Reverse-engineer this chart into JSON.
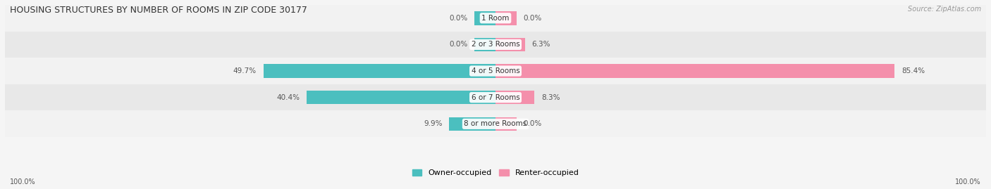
{
  "title": "HOUSING STRUCTURES BY NUMBER OF ROOMS IN ZIP CODE 30177",
  "source": "Source: ZipAtlas.com",
  "categories": [
    "1 Room",
    "2 or 3 Rooms",
    "4 or 5 Rooms",
    "6 or 7 Rooms",
    "8 or more Rooms"
  ],
  "owner_values": [
    0.0,
    0.0,
    49.7,
    40.4,
    9.9
  ],
  "renter_values": [
    0.0,
    6.3,
    85.4,
    8.3,
    0.0
  ],
  "owner_color": "#4bbfbf",
  "renter_color": "#f48fab",
  "row_bg_light": "#f2f2f2",
  "row_bg_dark": "#e8e8e8",
  "label_color": "#555555",
  "title_color": "#333333",
  "source_color": "#999999",
  "max_value": 100.0,
  "bar_height": 0.52,
  "min_bar_width": 4.5,
  "figsize": [
    14.06,
    2.69
  ],
  "dpi": 100
}
